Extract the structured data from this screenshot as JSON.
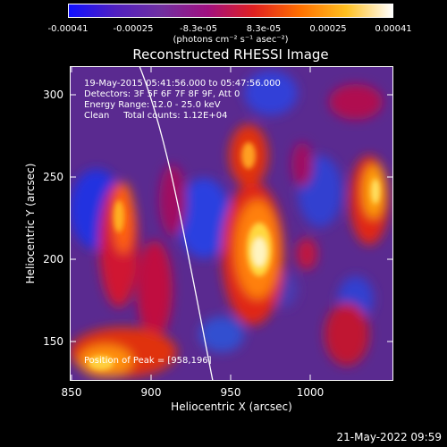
{
  "colorbar": {
    "ticks": [
      "-0.00041",
      "-0.00025",
      "-8.3e-05",
      "8.3e-05",
      "0.00025",
      "0.00041"
    ],
    "unit": "(photons cm⁻² s⁻¹ asec⁻²)",
    "colors": [
      "#1010ff",
      "#5020c0",
      "#7030a0",
      "#a01080",
      "#e02020",
      "#ff7000",
      "#ffc020",
      "#ffffff"
    ]
  },
  "title": "Reconstructed RHESSI Image",
  "overlay": {
    "line1": "19-May-2015 05:41:56.000 to 05:47:56.000",
    "line2": "Detectors: 3F 5F 6F 7F 8F 9F, Att 0",
    "line3": "Energy Range: 12.0 - 25.0 keV",
    "line4": "Clean     Total counts: 1.12E+04",
    "peak": "Position of Peak = [958,196]"
  },
  "axes": {
    "x_ticks": [
      "850",
      "900",
      "950",
      "1000"
    ],
    "y_ticks": [
      "300",
      "250",
      "200",
      "150"
    ],
    "xlabel": "Heliocentric X (arcsec)",
    "ylabel": "Heliocentric Y (arcsec)"
  },
  "timestamp": "21-May-2022 09:59"
}
